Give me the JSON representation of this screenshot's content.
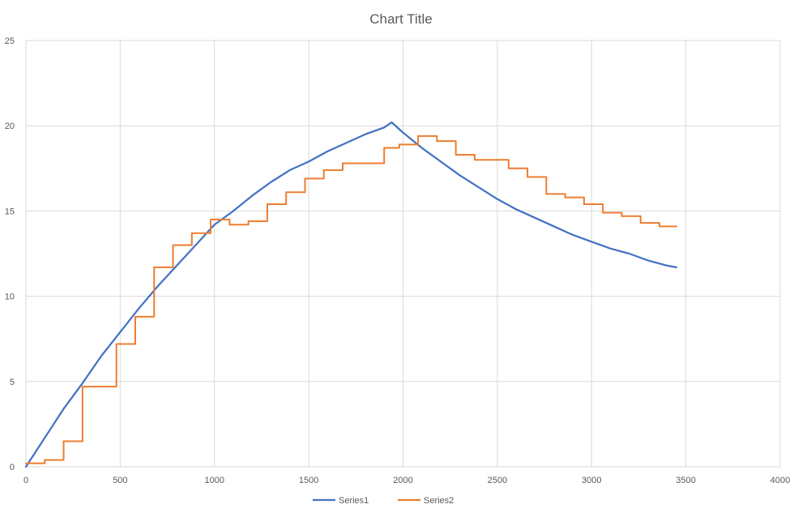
{
  "chart_data": {
    "type": "line",
    "title": "Chart Title",
    "xlabel": "",
    "ylabel": "",
    "xlim": [
      0,
      4000
    ],
    "ylim": [
      0,
      25
    ],
    "x_ticks": [
      0,
      500,
      1000,
      1500,
      2000,
      2500,
      3000,
      3500,
      4000
    ],
    "y_ticks": [
      0,
      5,
      10,
      15,
      20,
      25
    ],
    "grid": true,
    "legend_position": "bottom",
    "series": [
      {
        "name": "Series1",
        "color": "#4472C4",
        "style": "smooth",
        "x": [
          0,
          100,
          200,
          300,
          400,
          500,
          600,
          700,
          800,
          900,
          1000,
          1100,
          1200,
          1300,
          1400,
          1500,
          1600,
          1700,
          1800,
          1900,
          1940,
          2000,
          2100,
          2200,
          2300,
          2400,
          2500,
          2600,
          2700,
          2800,
          2900,
          3000,
          3100,
          3200,
          3300,
          3400,
          3450
        ],
        "values": [
          0,
          1.7,
          3.4,
          4.9,
          6.5,
          7.9,
          9.3,
          10.6,
          11.8,
          13.0,
          14.2,
          15.0,
          15.9,
          16.7,
          17.4,
          17.9,
          18.5,
          19.0,
          19.5,
          19.9,
          20.2,
          19.6,
          18.7,
          17.9,
          17.1,
          16.4,
          15.7,
          15.1,
          14.6,
          14.1,
          13.6,
          13.2,
          12.8,
          12.5,
          12.1,
          11.8,
          11.7
        ]
      },
      {
        "name": "Series2",
        "color": "#ED7D31",
        "style": "step",
        "x": [
          0,
          100,
          200,
          300,
          480,
          580,
          680,
          780,
          880,
          980,
          1080,
          1180,
          1280,
          1380,
          1480,
          1580,
          1680,
          1800,
          1900,
          1980,
          2080,
          2180,
          2280,
          2380,
          2560,
          2660,
          2760,
          2860,
          2960,
          3060,
          3160,
          3260,
          3360,
          3450
        ],
        "values": [
          0.2,
          0.4,
          1.5,
          4.7,
          7.2,
          8.8,
          11.7,
          13.0,
          13.7,
          14.5,
          14.2,
          14.4,
          15.4,
          16.1,
          16.9,
          17.4,
          17.8,
          17.8,
          18.7,
          18.9,
          19.4,
          19.1,
          18.3,
          18.0,
          17.5,
          17.0,
          16.0,
          15.8,
          15.4,
          14.9,
          14.7,
          14.3,
          14.1,
          14.1
        ]
      }
    ]
  }
}
